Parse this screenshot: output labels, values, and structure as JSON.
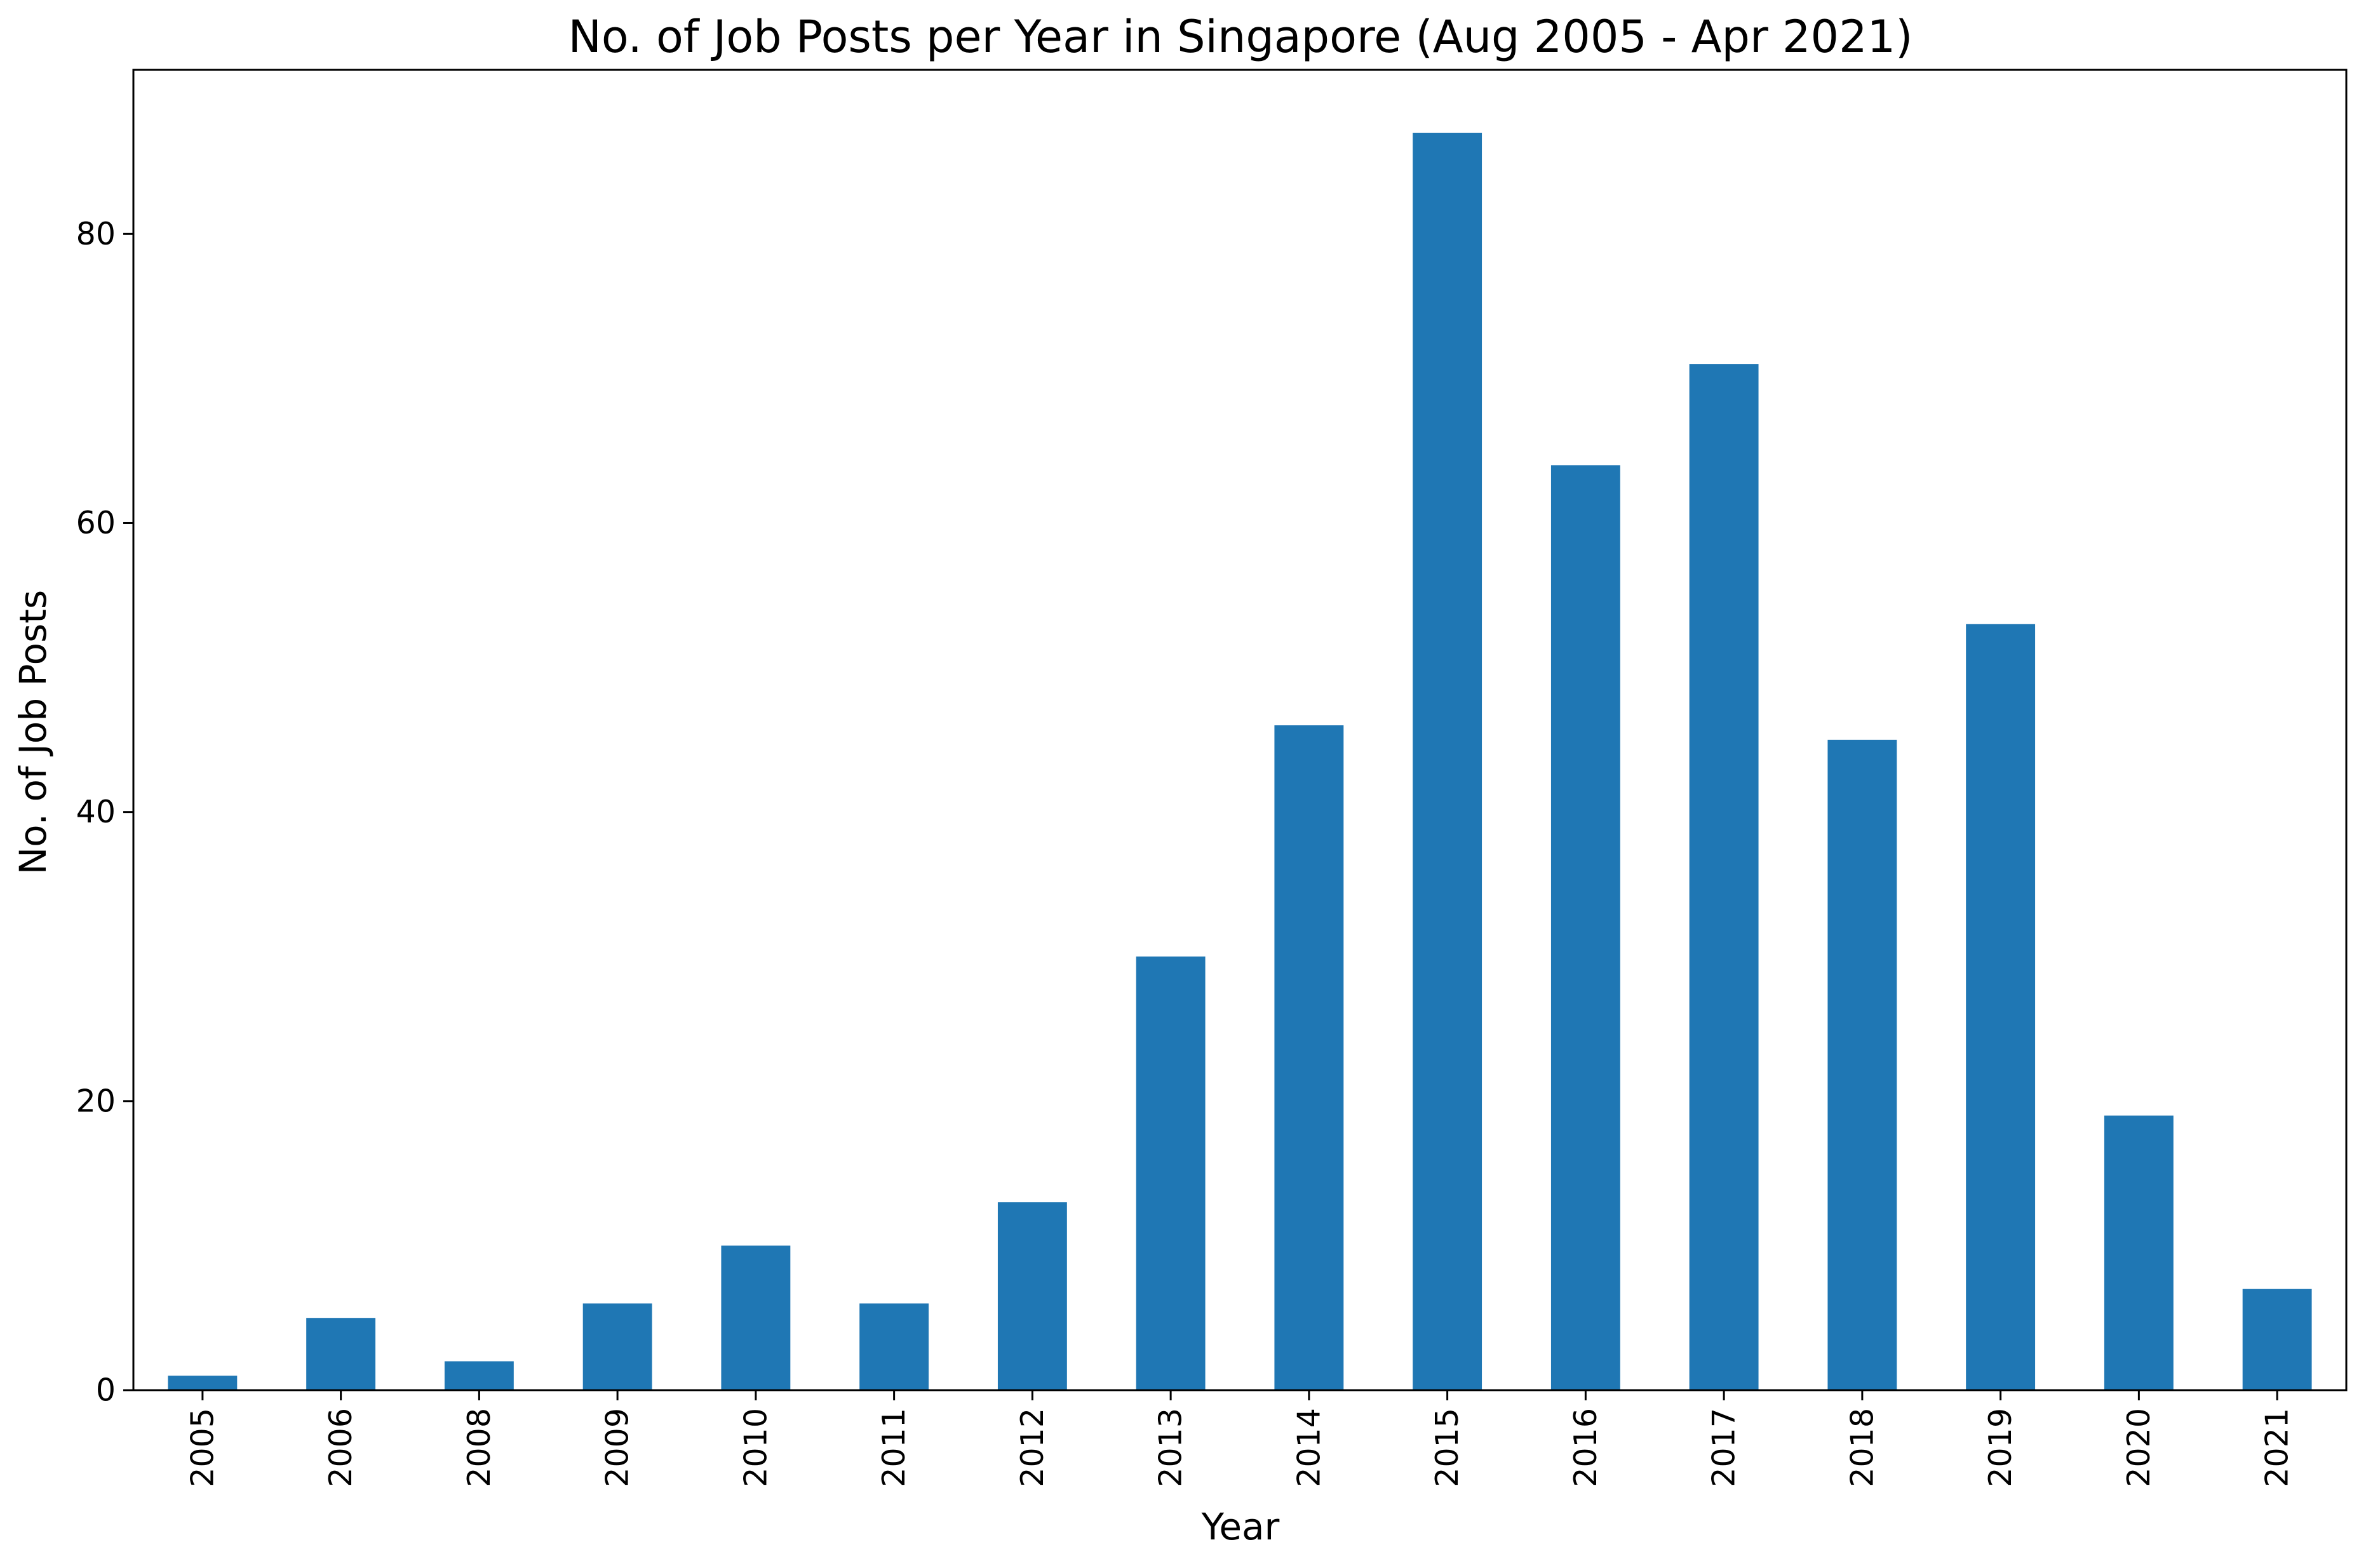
{
  "chart_data": {
    "type": "bar",
    "title": "No. of Job Posts per Year in Singapore (Aug 2005 - Apr 2021)",
    "xlabel": "Year",
    "ylabel": "No. of Job Posts",
    "categories": [
      "2005",
      "2006",
      "2008",
      "2009",
      "2010",
      "2011",
      "2012",
      "2013",
      "2014",
      "2015",
      "2016",
      "2017",
      "2018",
      "2019",
      "2020",
      "2021"
    ],
    "values": [
      1,
      5,
      2,
      6,
      10,
      6,
      13,
      30,
      46,
      87,
      64,
      71,
      45,
      53,
      19,
      7
    ],
    "ylim": [
      0,
      91.35
    ],
    "yticks": [
      0,
      20,
      40,
      60,
      80
    ],
    "grid": false,
    "legend": "none",
    "bar_color": "#1f77b4"
  }
}
